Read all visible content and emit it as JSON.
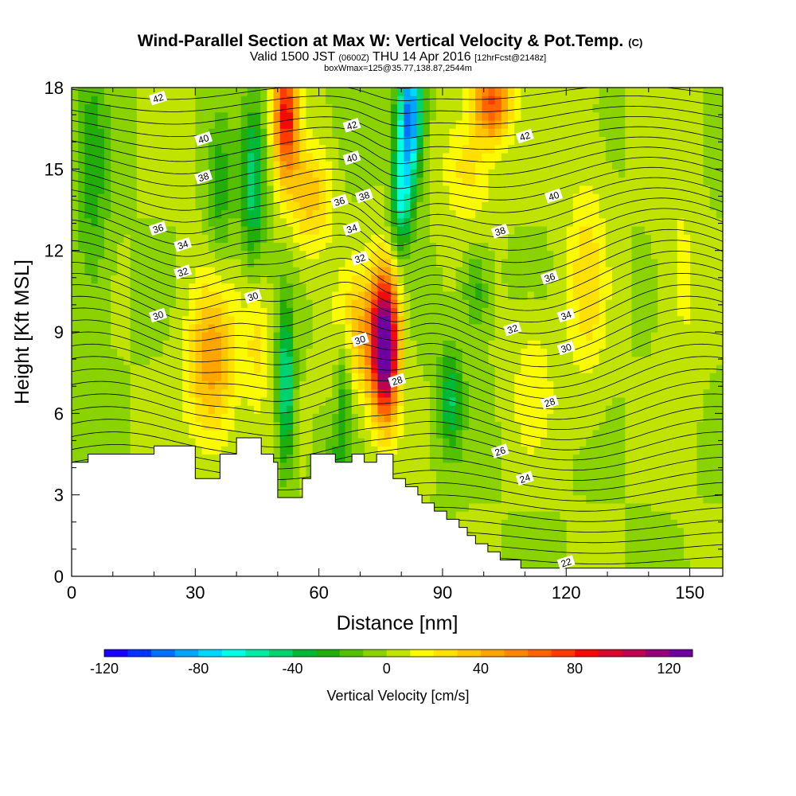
{
  "chart_data": {
    "type": "heatmap",
    "title": "Wind-Parallel Section at Max W: Vertical Velocity & Pot.Temp.",
    "title_mark": "(C)",
    "subtitle": {
      "valid": "Valid 1500 JST",
      "zone": "(0600Z)",
      "date": "THU 14 Apr 2016",
      "run": "[12hrFcst@2148z]"
    },
    "box_note": "boxWmax=125@35.77,138.87,2544m",
    "xlabel": "Distance [nm]",
    "ylabel": "Height [Kft MSL]",
    "xlim": [
      0,
      158
    ],
    "ylim": [
      0,
      18
    ],
    "x_ticks": [
      0,
      30,
      60,
      90,
      120,
      150
    ],
    "y_ticks": [
      0,
      3,
      6,
      9,
      12,
      15,
      18
    ],
    "colorbar": {
      "label": "Vertical Velocity [cm/s]",
      "min": -120,
      "max": 130,
      "step": 10,
      "ticks": [
        -120,
        -80,
        -40,
        0,
        40,
        80,
        120
      ],
      "colors": [
        "#1a00ff",
        "#0033ff",
        "#0070ff",
        "#00a5ff",
        "#00d7ff",
        "#00ffe5",
        "#00eba5",
        "#00d270",
        "#00b838",
        "#22ad0a",
        "#55c000",
        "#8ad200",
        "#c0e400",
        "#fafa00",
        "#ffe100",
        "#ffc500",
        "#ffa500",
        "#ff8600",
        "#ff6400",
        "#ff3a00",
        "#f50a0a",
        "#d7082d",
        "#bb0550",
        "#940077",
        "#6e00a0"
      ]
    },
    "terrain_top": [
      [
        0,
        4.2
      ],
      [
        4,
        4.2
      ],
      [
        4,
        4.5
      ],
      [
        20,
        4.5
      ],
      [
        20,
        4.8
      ],
      [
        30,
        4.8
      ],
      [
        30,
        3.6
      ],
      [
        36,
        3.6
      ],
      [
        36,
        4.5
      ],
      [
        40,
        4.5
      ],
      [
        40,
        5.1
      ],
      [
        46,
        5.1
      ],
      [
        46,
        4.5
      ],
      [
        49,
        4.5
      ],
      [
        49,
        4.2
      ],
      [
        50,
        4.2
      ],
      [
        50,
        2.9
      ],
      [
        56,
        2.9
      ],
      [
        56,
        3.6
      ],
      [
        58,
        3.6
      ],
      [
        58,
        4.5
      ],
      [
        64,
        4.5
      ],
      [
        64,
        4.2
      ],
      [
        68,
        4.2
      ],
      [
        68,
        4.5
      ],
      [
        71,
        4.5
      ],
      [
        71,
        4.2
      ],
      [
        74,
        4.2
      ],
      [
        74,
        4.5
      ],
      [
        78,
        4.5
      ],
      [
        78,
        3.6
      ],
      [
        81,
        3.6
      ],
      [
        81,
        3.3
      ],
      [
        84,
        3.3
      ],
      [
        84,
        3.0
      ],
      [
        85,
        3.0
      ],
      [
        85,
        2.7
      ],
      [
        88,
        2.7
      ],
      [
        88,
        2.4
      ],
      [
        91,
        2.4
      ],
      [
        91,
        2.1
      ],
      [
        94,
        2.1
      ],
      [
        94,
        1.8
      ],
      [
        96,
        1.8
      ],
      [
        96,
        1.5
      ],
      [
        98,
        1.5
      ],
      [
        98,
        1.2
      ],
      [
        101,
        1.2
      ],
      [
        101,
        0.9
      ],
      [
        104,
        0.9
      ],
      [
        104,
        0.6
      ],
      [
        109,
        0.6
      ],
      [
        109,
        0.3
      ],
      [
        158,
        0.3
      ]
    ],
    "w_features": [
      {
        "x": 76,
        "y": 8.5,
        "sx": 3.2,
        "sy": 2.6,
        "w": 140
      },
      {
        "x": 70,
        "y": 9.0,
        "sx": 6.0,
        "sy": 2.5,
        "w": 35
      },
      {
        "x": 52,
        "y": 17.0,
        "sx": 3.0,
        "sy": 2.3,
        "w": 85
      },
      {
        "x": 58,
        "y": 14.0,
        "sx": 5.0,
        "sy": 2.0,
        "w": 35
      },
      {
        "x": 102,
        "y": 17.5,
        "sx": 4.5,
        "sy": 1.4,
        "w": 70
      },
      {
        "x": 96,
        "y": 15.0,
        "sx": 6.0,
        "sy": 2.0,
        "w": 25
      },
      {
        "x": 34,
        "y": 8.0,
        "sx": 6.0,
        "sy": 3.0,
        "w": 48
      },
      {
        "x": 45,
        "y": 8.5,
        "sx": 3.0,
        "sy": 2.5,
        "w": 22
      },
      {
        "x": 125,
        "y": 11.0,
        "sx": 5.0,
        "sy": 4.0,
        "w": 25
      },
      {
        "x": 112,
        "y": 7.0,
        "sx": 5.0,
        "sy": 2.5,
        "w": 18
      },
      {
        "x": 148,
        "y": 11.0,
        "sx": 5.0,
        "sy": 5.0,
        "w": 12
      },
      {
        "x": 82,
        "y": 17.0,
        "sx": 3.0,
        "sy": 2.5,
        "w": -95
      },
      {
        "x": 80,
        "y": 14.0,
        "sx": 2.5,
        "sy": 2.0,
        "w": -55
      },
      {
        "x": 52,
        "y": 7.0,
        "sx": 2.0,
        "sy": 3.0,
        "w": -55
      },
      {
        "x": 44,
        "y": 14.5,
        "sx": 3.0,
        "sy": 3.0,
        "w": -45
      },
      {
        "x": 92,
        "y": 6.5,
        "sx": 3.0,
        "sy": 2.0,
        "w": -40
      },
      {
        "x": 5,
        "y": 15.0,
        "sx": 4.0,
        "sy": 5.0,
        "w": -25
      },
      {
        "x": 66,
        "y": 7.0,
        "sx": 2.0,
        "sy": 2.5,
        "w": -30
      },
      {
        "x": 98,
        "y": 10.5,
        "sx": 3.0,
        "sy": 1.5,
        "w": -25
      },
      {
        "x": 64,
        "y": 3.8,
        "sx": 4.0,
        "sy": 1.5,
        "w": -20
      },
      {
        "x": 36,
        "y": 14.0,
        "sx": 3.0,
        "sy": 3.0,
        "w": -25
      }
    ],
    "theta_labels": [
      {
        "x": 21,
        "y": 17.6,
        "t": "42"
      },
      {
        "x": 32,
        "y": 16.1,
        "t": "40"
      },
      {
        "x": 32,
        "y": 14.7,
        "t": "38"
      },
      {
        "x": 21,
        "y": 12.8,
        "t": "36"
      },
      {
        "x": 27,
        "y": 12.2,
        "t": "34"
      },
      {
        "x": 27,
        "y": 11.2,
        "t": "32"
      },
      {
        "x": 21,
        "y": 9.6,
        "t": "30"
      },
      {
        "x": 44,
        "y": 10.3,
        "t": "30"
      },
      {
        "x": 68,
        "y": 16.6,
        "t": "42"
      },
      {
        "x": 68,
        "y": 15.4,
        "t": "40"
      },
      {
        "x": 71,
        "y": 14.0,
        "t": "38"
      },
      {
        "x": 65,
        "y": 13.8,
        "t": "36"
      },
      {
        "x": 68,
        "y": 12.8,
        "t": "34"
      },
      {
        "x": 70,
        "y": 11.7,
        "t": "32"
      },
      {
        "x": 70,
        "y": 8.7,
        "t": "30"
      },
      {
        "x": 79,
        "y": 7.2,
        "t": "28"
      },
      {
        "x": 110,
        "y": 16.2,
        "t": "42"
      },
      {
        "x": 117,
        "y": 14.0,
        "t": "40"
      },
      {
        "x": 104,
        "y": 12.7,
        "t": "38"
      },
      {
        "x": 116,
        "y": 11.0,
        "t": "36"
      },
      {
        "x": 120,
        "y": 9.6,
        "t": "34"
      },
      {
        "x": 107,
        "y": 9.1,
        "t": "32"
      },
      {
        "x": 120,
        "y": 8.4,
        "t": "30"
      },
      {
        "x": 116,
        "y": 6.4,
        "t": "28"
      },
      {
        "x": 104,
        "y": 4.6,
        "t": "26"
      },
      {
        "x": 110,
        "y": 3.6,
        "t": "24"
      },
      {
        "x": 120,
        "y": 0.5,
        "t": "22"
      }
    ]
  }
}
